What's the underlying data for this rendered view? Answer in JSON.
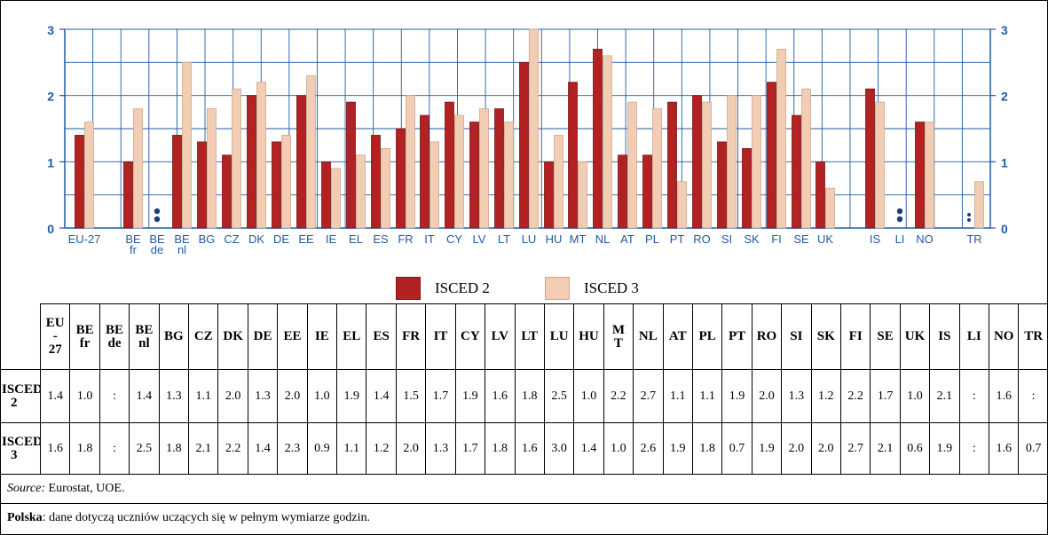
{
  "chart_data": {
    "type": "bar",
    "categories": [
      "EU-27",
      "BE fr",
      "BE de",
      "BE nl",
      "BG",
      "CZ",
      "DK",
      "DE",
      "EE",
      "IE",
      "EL",
      "ES",
      "FR",
      "IT",
      "CY",
      "LV",
      "LT",
      "LU",
      "HU",
      "MT",
      "NL",
      "AT",
      "PL",
      "PT",
      "RO",
      "SI",
      "SK",
      "FI",
      "SE",
      "UK",
      "IS",
      "LI",
      "NO",
      "TR"
    ],
    "axis_labels": [
      [
        "EU-27"
      ],
      [
        "BE",
        "fr"
      ],
      [
        "BE",
        "de"
      ],
      [
        "BE",
        "nl"
      ],
      [
        "BG"
      ],
      [
        "CZ"
      ],
      [
        "DK"
      ],
      [
        "DE"
      ],
      [
        "EE"
      ],
      [
        "IE"
      ],
      [
        "EL"
      ],
      [
        "ES"
      ],
      [
        "FR"
      ],
      [
        "IT"
      ],
      [
        "CY"
      ],
      [
        "LV"
      ],
      [
        "LT"
      ],
      [
        "LU"
      ],
      [
        "HU"
      ],
      [
        "MT"
      ],
      [
        "NL"
      ],
      [
        "AT"
      ],
      [
        "PL"
      ],
      [
        "PT"
      ],
      [
        "RO"
      ],
      [
        "SI"
      ],
      [
        "SK"
      ],
      [
        "FI"
      ],
      [
        "SE"
      ],
      [
        "UK"
      ],
      [
        "IS"
      ],
      [
        "LI"
      ],
      [
        "NO"
      ],
      [
        "TR"
      ]
    ],
    "series": [
      {
        "name": "ISCED 2",
        "color": "#b22222",
        "values": [
          1.4,
          1.0,
          null,
          1.4,
          1.3,
          1.1,
          2.0,
          1.3,
          2.0,
          1.0,
          1.9,
          1.4,
          1.5,
          1.7,
          1.9,
          1.6,
          1.8,
          2.5,
          1.0,
          2.2,
          2.7,
          1.1,
          1.1,
          1.9,
          2.0,
          1.3,
          1.2,
          2.2,
          1.7,
          1.0,
          2.1,
          null,
          1.6,
          null
        ]
      },
      {
        "name": "ISCED 3",
        "color": "#f2cdb4",
        "values": [
          1.6,
          1.8,
          null,
          2.5,
          1.8,
          2.1,
          2.2,
          1.4,
          2.3,
          0.9,
          1.1,
          1.2,
          2.0,
          1.3,
          1.7,
          1.8,
          1.6,
          3.0,
          1.4,
          1.0,
          2.6,
          1.9,
          1.8,
          0.7,
          1.9,
          2.0,
          2.0,
          2.7,
          2.1,
          0.6,
          1.9,
          null,
          1.6,
          0.7
        ]
      }
    ],
    "ylim": [
      0,
      3
    ],
    "yticks": [
      0,
      1,
      2,
      3
    ],
    "missing_marker": ":",
    "grid": true,
    "legend_position": "bottom-center"
  },
  "table": {
    "header": [
      [
        "EU",
        "-",
        "27"
      ],
      [
        "BE",
        "fr"
      ],
      [
        "BE",
        "de"
      ],
      [
        "BE",
        "nl"
      ],
      [
        "BG"
      ],
      [
        "CZ"
      ],
      [
        "DK"
      ],
      [
        "DE"
      ],
      [
        "EE"
      ],
      [
        "IE"
      ],
      [
        "EL"
      ],
      [
        "ES"
      ],
      [
        "FR"
      ],
      [
        "IT"
      ],
      [
        "CY"
      ],
      [
        "LV"
      ],
      [
        "LT"
      ],
      [
        "LU"
      ],
      [
        "HU"
      ],
      [
        "M",
        "T"
      ],
      [
        "NL"
      ],
      [
        "AT"
      ],
      [
        "PL"
      ],
      [
        "PT"
      ],
      [
        "RO"
      ],
      [
        "SI"
      ],
      [
        "SK"
      ],
      [
        "FI"
      ],
      [
        "SE"
      ],
      [
        "UK"
      ],
      [
        "IS"
      ],
      [
        "LI"
      ],
      [
        "NO"
      ],
      [
        "TR"
      ]
    ],
    "rows": [
      {
        "label": [
          "ISCED",
          "2"
        ],
        "values": [
          "1.4",
          "1.0",
          ":",
          "1.4",
          "1.3",
          "1.1",
          "2.0",
          "1.3",
          "2.0",
          "1.0",
          "1.9",
          "1.4",
          "1.5",
          "1.7",
          "1.9",
          "1.6",
          "1.8",
          "2.5",
          "1.0",
          "2.2",
          "2.7",
          "1.1",
          "1.1",
          "1.9",
          "2.0",
          "1.3",
          "1.2",
          "2.2",
          "1.7",
          "1.0",
          "2.1",
          ":",
          "1.6",
          ":"
        ]
      },
      {
        "label": [
          "ISCED",
          "3"
        ],
        "values": [
          "1.6",
          "1.8",
          ":",
          "2.5",
          "1.8",
          "2.1",
          "2.2",
          "1.4",
          "2.3",
          "0.9",
          "1.1",
          "1.2",
          "2.0",
          "1.3",
          "1.7",
          "1.8",
          "1.6",
          "3.0",
          "1.4",
          "1.0",
          "2.6",
          "1.9",
          "1.8",
          "0.7",
          "1.9",
          "2.0",
          "2.0",
          "2.7",
          "2.1",
          "0.6",
          "1.9",
          ":",
          "1.6",
          "0.7"
        ]
      }
    ]
  },
  "notes": {
    "source_label": "Source:",
    "source_text": "Eurostat, UOE.",
    "polska_label": "Polska",
    "polska_text": ": dane dotyczą uczniów uczących się w pełnym wymiarze godzin."
  },
  "colors": {
    "axis": "#1f5aa6",
    "grid": "#1f5aa6"
  }
}
